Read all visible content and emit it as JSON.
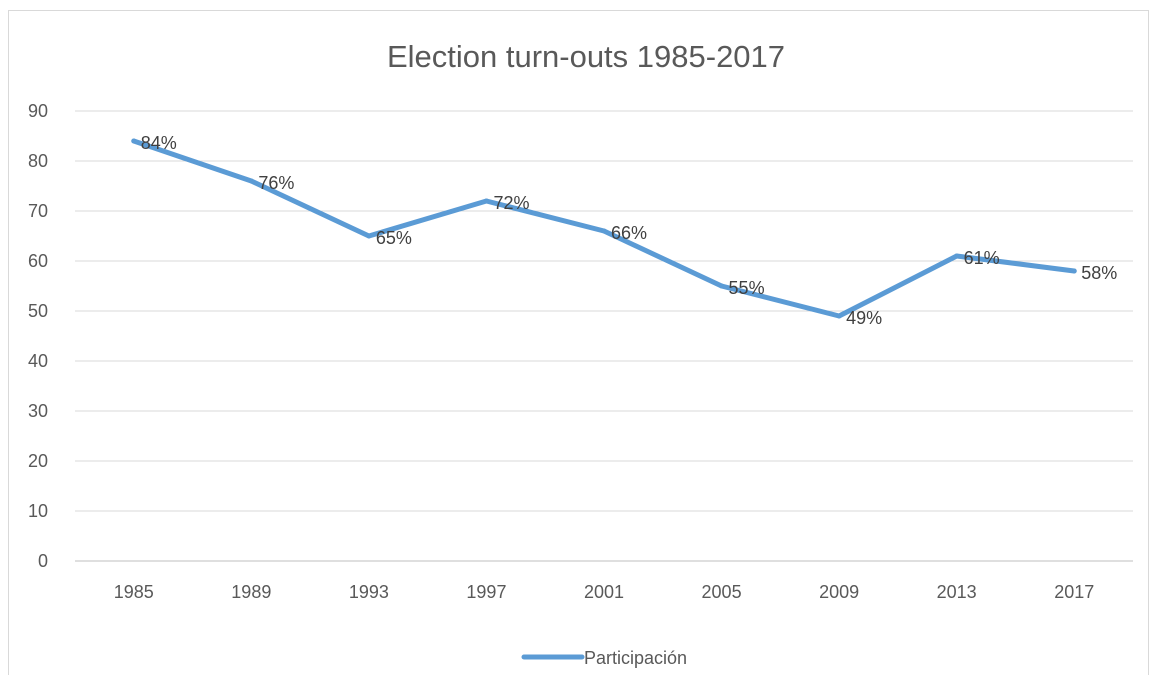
{
  "chart_data": {
    "type": "line",
    "title": "Election turn-outs 1985-2017",
    "xlabel": "",
    "ylabel": "",
    "categories": [
      "1985",
      "1989",
      "1993",
      "1997",
      "2001",
      "2005",
      "2009",
      "2013",
      "2017"
    ],
    "series": [
      {
        "name": "Participación",
        "values": [
          84,
          76,
          65,
          72,
          66,
          55,
          49,
          61,
          58
        ],
        "labels": [
          "84%",
          "76%",
          "65%",
          "72%",
          "66%",
          "55%",
          "49%",
          "61%",
          "58%"
        ],
        "color": "#5b9bd5"
      }
    ],
    "ylim": [
      0,
      90
    ],
    "yticks": [
      0,
      10,
      20,
      30,
      40,
      50,
      60,
      70,
      80,
      90
    ],
    "grid": true,
    "legend": "bottom"
  }
}
